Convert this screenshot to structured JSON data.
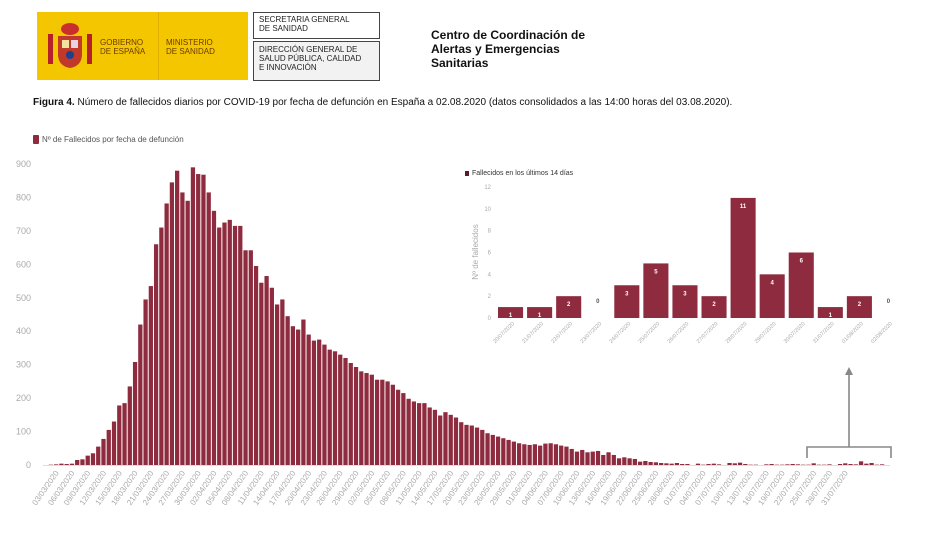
{
  "header": {
    "logo_gobierno": [
      "GOBIERNO",
      "DE ESPAÑA"
    ],
    "logo_ministerio": [
      "MINISTERIO",
      "DE SANIDAD"
    ],
    "box1": [
      "SECRETARIA GENERAL",
      "DE SANIDAD"
    ],
    "box2": [
      "DIRECCIÓN GENERAL DE",
      "SALUD PÚBLICA, CALIDAD",
      "E INNOVACIÓN"
    ],
    "centro": [
      "Centro de Coordinación de",
      "Alertas y Emergencias",
      "Sanitarias"
    ]
  },
  "caption": {
    "label": "Figura 4.",
    "text": " Número de fallecidos diarios por COVID-19 por fecha de defunción en España a 02.08.2020 (datos consolidados a las 14:00 horas del 03.08.2020)."
  },
  "colors": {
    "bar": "#8e2b3e",
    "axis_text": "#aaaaaa",
    "bracket": "#888888"
  },
  "chart_data": [
    {
      "type": "bar",
      "title": "",
      "legend": "Nº de Fallecidos por fecha de defunción",
      "legend_position": "top-left",
      "xlabel": "",
      "ylabel": "",
      "ylim": [
        0,
        900
      ],
      "yticks": [
        0,
        100,
        200,
        300,
        400,
        500,
        600,
        700,
        800,
        900
      ],
      "start_date": "01/03/2020",
      "xtick_labels": [
        "03/03/2020",
        "06/03/2020",
        "09/03/2020",
        "12/03/2020",
        "15/03/2020",
        "18/03/2020",
        "21/03/2020",
        "24/03/2020",
        "27/03/2020",
        "30/03/2020",
        "02/04/2020",
        "05/04/2020",
        "08/04/2020",
        "11/04/2020",
        "14/04/2020",
        "17/04/2020",
        "20/04/2020",
        "23/04/2020",
        "26/04/2020",
        "29/04/2020",
        "02/05/2020",
        "05/05/2020",
        "08/05/2020",
        "11/05/2020",
        "14/05/2020",
        "17/05/2020",
        "20/05/2020",
        "23/05/2020",
        "26/05/2020",
        "29/05/2020",
        "01/06/2020",
        "04/06/2020",
        "07/06/2020",
        "10/06/2020",
        "13/06/2020",
        "16/06/2020",
        "19/06/2020",
        "22/06/2020",
        "25/06/2020",
        "28/06/2020",
        "01/07/2020",
        "04/07/2020",
        "07/07/2020",
        "10/07/2020",
        "13/07/2020",
        "16/07/2020",
        "19/07/2020",
        "22/07/2020",
        "25/07/2020",
        "28/07/2020",
        "31/07/2020"
      ],
      "values": [
        0,
        1,
        2,
        4,
        3,
        4,
        15,
        17,
        28,
        35,
        55,
        78,
        105,
        130,
        178,
        185,
        235,
        308,
        420,
        495,
        535,
        660,
        710,
        782,
        845,
        880,
        815,
        790,
        890,
        870,
        868,
        815,
        760,
        710,
        725,
        733,
        715,
        715,
        642,
        642,
        595,
        545,
        565,
        530,
        480,
        495,
        445,
        415,
        405,
        435,
        390,
        372,
        375,
        360,
        345,
        340,
        330,
        320,
        305,
        293,
        280,
        275,
        270,
        255,
        255,
        250,
        240,
        225,
        215,
        198,
        190,
        185,
        185,
        172,
        165,
        148,
        158,
        150,
        142,
        128,
        120,
        118,
        112,
        105,
        95,
        90,
        85,
        80,
        75,
        70,
        65,
        62,
        60,
        62,
        58,
        64,
        65,
        62,
        58,
        55,
        48,
        40,
        45,
        38,
        40,
        42,
        30,
        38,
        30,
        20,
        23,
        20,
        18,
        10,
        12,
        9,
        8,
        6,
        5,
        4,
        6,
        3,
        3,
        0,
        4,
        1,
        3,
        4,
        2,
        0,
        6,
        5,
        7,
        3,
        1,
        1,
        0,
        2,
        3,
        1,
        1,
        2,
        3,
        2,
        1,
        1,
        5,
        1,
        1,
        2,
        0,
        3,
        5,
        3,
        2,
        11,
        4,
        6,
        1,
        2,
        0
      ]
    },
    {
      "type": "bar",
      "title": "",
      "legend": "Fallecidos en los últimos 14 días",
      "legend_position": "top-left",
      "ylabel": "Nº de fallecidos",
      "ylim": [
        0,
        12
      ],
      "yticks": [
        0,
        2,
        4,
        6,
        8,
        10,
        12
      ],
      "categories": [
        "20/07/2020",
        "21/07/2020",
        "22/07/2020",
        "23/07/2020",
        "24/07/2020",
        "25/07/2020",
        "26/07/2020",
        "27/07/2020",
        "28/07/2020",
        "29/07/2020",
        "30/07/2020",
        "31/07/2020",
        "01/08/2020",
        "02/08/2020"
      ],
      "values": [
        1,
        1,
        2,
        0,
        3,
        5,
        3,
        2,
        11,
        4,
        6,
        1,
        2,
        0
      ]
    }
  ]
}
